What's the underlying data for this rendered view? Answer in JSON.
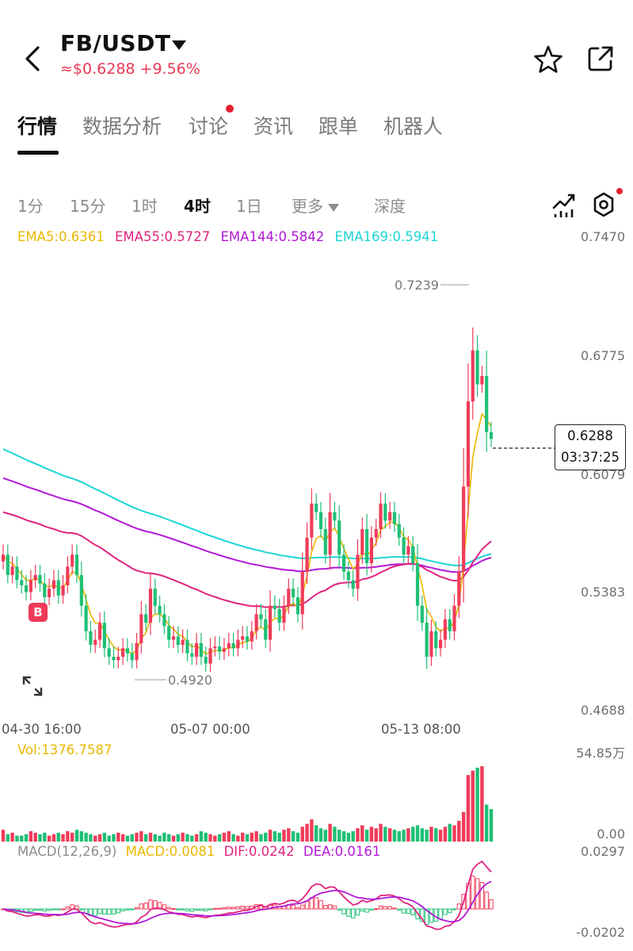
{
  "header": {
    "pair": "FB/USDT",
    "subprice": "≈$0.6288 +9.56%"
  },
  "tabs": [
    {
      "label": "行情",
      "active": true
    },
    {
      "label": "数据分析"
    },
    {
      "label": "讨论"
    },
    {
      "label": "资讯"
    },
    {
      "label": "跟单"
    },
    {
      "label": "机器人"
    }
  ],
  "intervals": [
    {
      "label": "1分"
    },
    {
      "label": "15分"
    },
    {
      "label": "1时"
    },
    {
      "label": "4时",
      "active": true
    },
    {
      "label": "1日"
    },
    {
      "label": "更多"
    },
    {
      "label": "深度"
    }
  ],
  "ema_legend": [
    {
      "text": "EMA5:0.6361",
      "color": "#e8b800"
    },
    {
      "text": "EMA55:0.5727",
      "color": "#e0237f"
    },
    {
      "text": "EMA144:0.5842",
      "color": "#b218d6"
    },
    {
      "text": "EMA169:0.5941",
      "color": "#1ed5d5"
    }
  ],
  "y_axis": [
    "0.7470",
    "0.6775",
    "0.6079",
    "0.5383",
    "0.4688"
  ],
  "x_axis": [
    "04-30 16:00",
    "05-07 00:00",
    "05-13 08:00"
  ],
  "high_marker": "0.7239",
  "low_marker": "0.4920",
  "price_tag": {
    "price": "0.6288",
    "countdown": "03:37:25"
  },
  "badge": "B",
  "volume": {
    "label": "Vol:1376.7587",
    "max": "54.85万",
    "min": "0.00"
  },
  "macd": {
    "params": "MACD(12,26,9)",
    "macd": "MACD:0.0081",
    "dif": "DIF:0.0242",
    "dea": "DEA:0.0161",
    "max": "0.0297",
    "min": "-0.0202"
  },
  "colors": {
    "up": "#ef3c59",
    "down": "#1fbf75",
    "accent": "#e83b57"
  },
  "chart_data": {
    "type": "candlestick",
    "interval": "4时",
    "ylim": [
      0.4688,
      0.747
    ],
    "closes": [
      0.56,
      0.548,
      0.553,
      0.545,
      0.542,
      0.538,
      0.545,
      0.548,
      0.543,
      0.535,
      0.54,
      0.545,
      0.536,
      0.542,
      0.553,
      0.56,
      0.548,
      0.53,
      0.515,
      0.507,
      0.51,
      0.52,
      0.505,
      0.5,
      0.498,
      0.5,
      0.505,
      0.502,
      0.498,
      0.508,
      0.525,
      0.52,
      0.54,
      0.53,
      0.525,
      0.518,
      0.51,
      0.512,
      0.507,
      0.51,
      0.502,
      0.5,
      0.508,
      0.5,
      0.496,
      0.505,
      0.506,
      0.503,
      0.505,
      0.508,
      0.505,
      0.51,
      0.512,
      0.509,
      0.515,
      0.525,
      0.522,
      0.51,
      0.53,
      0.528,
      0.52,
      0.53,
      0.54,
      0.535,
      0.525,
      0.55,
      0.57,
      0.59,
      0.585,
      0.575,
      0.56,
      0.585,
      0.58,
      0.56,
      0.55,
      0.545,
      0.54,
      0.56,
      0.575,
      0.555,
      0.57,
      0.575,
      0.59,
      0.58,
      0.585,
      0.578,
      0.57,
      0.56,
      0.565,
      0.555,
      0.53,
      0.52,
      0.5,
      0.515,
      0.505,
      0.51,
      0.522,
      0.515,
      0.53,
      0.55,
      0.6,
      0.65,
      0.68,
      0.66,
      0.665,
      0.632,
      0.628
    ],
    "volumes": [
      8,
      5,
      6,
      4,
      4,
      5,
      7,
      6,
      5,
      6,
      4,
      5,
      6,
      5,
      7,
      6,
      8,
      7,
      6,
      5,
      4,
      5,
      6,
      4,
      5,
      6,
      5,
      4,
      5,
      6,
      7,
      5,
      6,
      5,
      4,
      6,
      5,
      4,
      5,
      6,
      5,
      4,
      5,
      7,
      6,
      5,
      4,
      5,
      6,
      7,
      5,
      4,
      6,
      5,
      6,
      7,
      5,
      6,
      8,
      7,
      6,
      8,
      9,
      7,
      6,
      10,
      12,
      15,
      11,
      9,
      8,
      12,
      10,
      8,
      7,
      6,
      7,
      9,
      11,
      8,
      10,
      9,
      12,
      10,
      9,
      8,
      7,
      8,
      9,
      10,
      11,
      9,
      8,
      10,
      9,
      8,
      10,
      12,
      11,
      14,
      20,
      45,
      48,
      50,
      51,
      25,
      22
    ],
    "volume_ylim": [
      0,
      548500
    ],
    "macd_ylim": [
      -0.0202,
      0.0297
    ]
  }
}
